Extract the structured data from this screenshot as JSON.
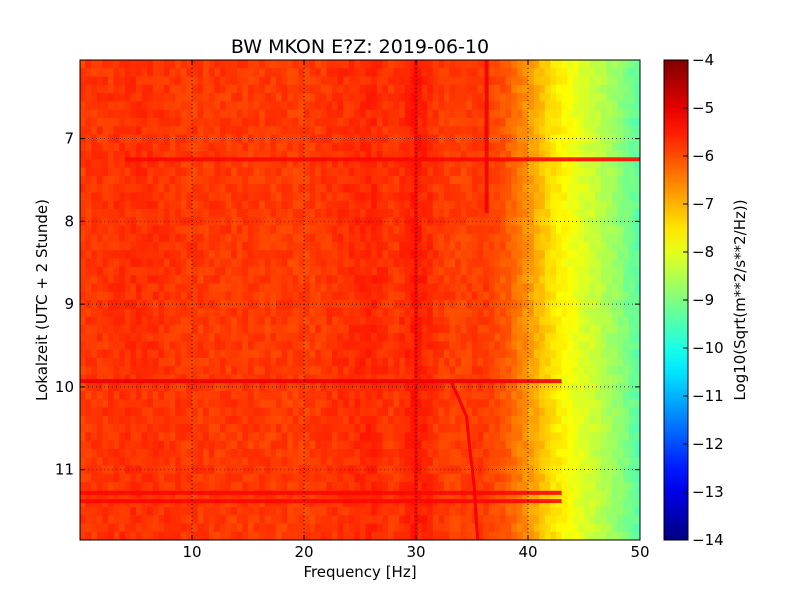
{
  "chart_data": {
    "type": "heatmap",
    "title": "BW MKON E?Z: 2019-06-10",
    "xlabel": "Frequency [Hz]",
    "ylabel": "Lokalzeit (UTC + 2 Stunde)",
    "xlim": [
      0,
      50
    ],
    "ylim": [
      6.05,
      11.85
    ],
    "y_inverted": true,
    "x_ticks": [
      10,
      20,
      30,
      40,
      50
    ],
    "x_tick_labels": [
      "10",
      "20",
      "30",
      "40",
      "50"
    ],
    "y_ticks": [
      7,
      8,
      9,
      10,
      11
    ],
    "y_tick_labels": [
      "7",
      "8",
      "9",
      "10",
      "11"
    ],
    "grid": true,
    "colormap": "jet",
    "colorbar": {
      "label": "Log10(Sqrt(m**2/s**2/Hz))",
      "min": -14,
      "max": -4,
      "ticks": [
        -4,
        -5,
        -6,
        -7,
        -8,
        -9,
        -10,
        -11,
        -12,
        -13,
        -14
      ],
      "tick_labels": [
        "−4",
        "−5",
        "−6",
        "−7",
        "−8",
        "−9",
        "−10",
        "−11",
        "−12",
        "−13",
        "−14"
      ]
    },
    "frequency_profile": {
      "freq_hz": [
        0,
        5,
        10,
        15,
        20,
        24,
        26,
        28,
        30,
        32,
        34,
        36,
        38,
        40,
        42,
        44,
        46,
        48,
        50
      ],
      "log10_psd": [
        -5.8,
        -5.7,
        -5.8,
        -5.8,
        -5.85,
        -5.7,
        -5.6,
        -5.8,
        -5.5,
        -5.8,
        -5.9,
        -5.8,
        -6.1,
        -6.7,
        -7.4,
        -7.9,
        -8.3,
        -8.8,
        -9.4
      ]
    },
    "horizontal_events": [
      {
        "time": 7.25,
        "f_start": 4,
        "f_end": 50,
        "log10_psd": -5.3
      },
      {
        "time": 9.93,
        "f_start": 0,
        "f_end": 43,
        "log10_psd": -5.1
      },
      {
        "time": 11.28,
        "f_start": 0,
        "f_end": 43,
        "log10_psd": -5.3
      },
      {
        "time": 11.38,
        "f_start": 0,
        "f_end": 43,
        "log10_psd": -5.3
      }
    ],
    "vertical_lines": [
      {
        "freq": 30,
        "log10_psd": -5.3
      },
      {
        "freq": 36.3,
        "t_start": 6.05,
        "t_end": 7.9,
        "log10_psd": -5.1
      }
    ],
    "drifting_line": {
      "log10_psd": -5.2,
      "points": [
        {
          "time": 9.95,
          "freq": 33.2
        },
        {
          "time": 10.35,
          "freq": 34.5
        },
        {
          "time": 10.75,
          "freq": 34.8
        },
        {
          "time": 11.2,
          "freq": 35.2
        },
        {
          "time": 11.85,
          "freq": 35.5
        }
      ]
    }
  }
}
